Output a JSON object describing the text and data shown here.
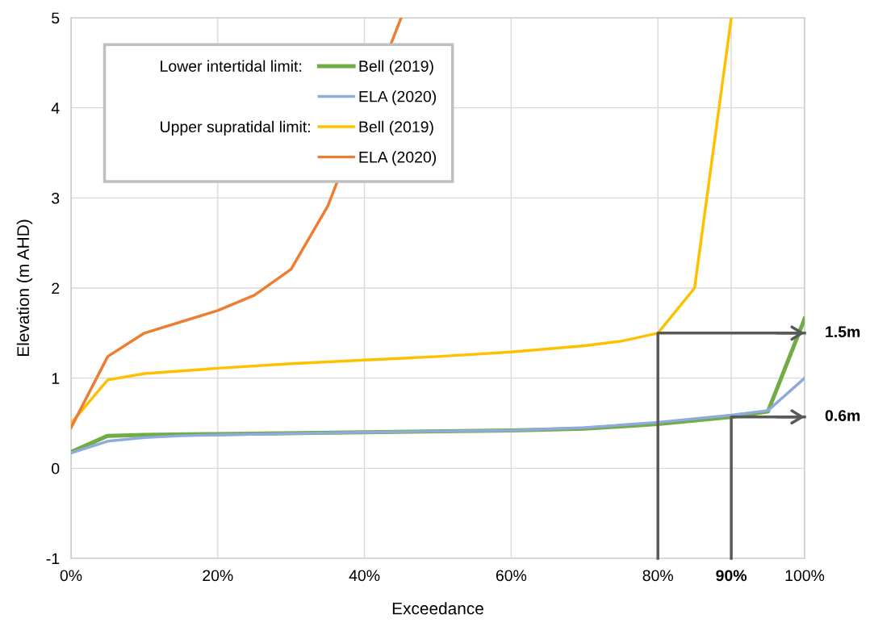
{
  "chart_data": {
    "type": "line",
    "xlabel": "Exceedance",
    "ylabel": "Elevation (m AHD)",
    "xlim": [
      0,
      100
    ],
    "xticks": [
      {
        "value": 0,
        "label": "0%"
      },
      {
        "value": 20,
        "label": "20%"
      },
      {
        "value": 40,
        "label": "40%"
      },
      {
        "value": 60,
        "label": "60%"
      },
      {
        "value": 80,
        "label": "80%"
      },
      {
        "value": 90,
        "label": "90%"
      },
      {
        "value": 100,
        "label": "100%"
      }
    ],
    "ylim": [
      -1,
      5
    ],
    "yticks": [
      -1,
      0,
      1,
      2,
      3,
      4,
      5
    ],
    "grid": true,
    "legend": "top left",
    "marker": "none",
    "line_style": "solid",
    "series": [
      {
        "name": "Bell (2019)",
        "color": "#70ad47",
        "x": [
          0,
          5,
          10,
          20,
          40,
          60,
          70,
          80,
          90,
          95,
          100
        ],
        "values": [
          0.18,
          0.36,
          0.37,
          0.38,
          0.4,
          0.42,
          0.44,
          0.49,
          0.57,
          0.63,
          1.66
        ]
      },
      {
        "name": "ELA (2020)",
        "color": "#8faadc",
        "x": [
          0,
          5,
          10,
          15,
          20,
          40,
          60,
          70,
          80,
          90,
          95,
          100
        ],
        "values": [
          0.17,
          0.3,
          0.34,
          0.36,
          0.37,
          0.4,
          0.42,
          0.45,
          0.51,
          0.59,
          0.64,
          1.0
        ]
      },
      {
        "name": "Bell (2019)",
        "color": "#ffc000",
        "x": [
          0,
          5,
          10,
          15,
          20,
          30,
          40,
          50,
          60,
          70,
          75,
          80,
          85,
          90
        ],
        "values": [
          0.5,
          0.98,
          1.05,
          1.08,
          1.11,
          1.16,
          1.2,
          1.24,
          1.29,
          1.36,
          1.41,
          1.5,
          2.0,
          5.0
        ]
      },
      {
        "name": "ELA (2020)",
        "color": "#ed7d31",
        "x": [
          0,
          5,
          10,
          20,
          25,
          30,
          35,
          45
        ],
        "values": [
          0.45,
          1.24,
          1.5,
          1.75,
          1.92,
          2.21,
          2.91,
          5.0
        ]
      },
      {
        "color": "#595959",
        "x": [
          80,
          80,
          100
        ],
        "values": [
          -1,
          1.5,
          1.5
        ]
      },
      {
        "color": "#595959",
        "x": [
          90,
          90,
          100
        ],
        "values": [
          -1,
          0.57,
          0.57
        ]
      }
    ],
    "annotations": [
      "Lower intertidal limit:",
      "Upper supratidal limit:",
      "1.5m",
      "0.6m"
    ]
  }
}
